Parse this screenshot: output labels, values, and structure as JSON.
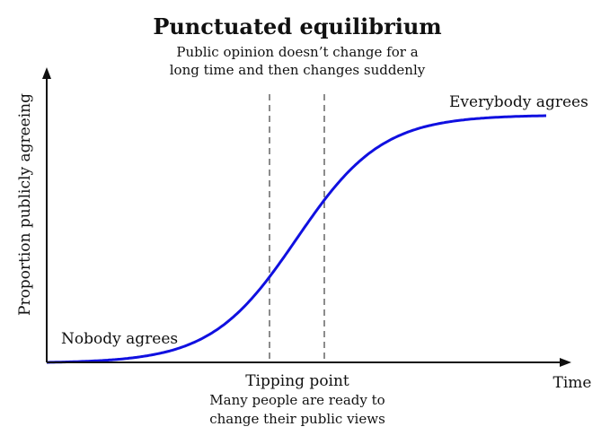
{
  "diagram": {
    "title": "Punctuated equilibrium",
    "subtitle_lines": [
      "Public opinion doesn’t change for a",
      "long time and then changes suddenly"
    ],
    "y_axis_label": "Proportion publicly agreeing",
    "x_axis_label": "Time",
    "low_label": "Nobody agrees",
    "high_label": "Everybody agrees",
    "tipping_label": "Tipping point",
    "tipping_note_lines": [
      "Many people are ready to",
      "change their public views"
    ],
    "curve_color": "#1010e0",
    "marker_line_color": "#666666",
    "axis_color": "#111111"
  }
}
